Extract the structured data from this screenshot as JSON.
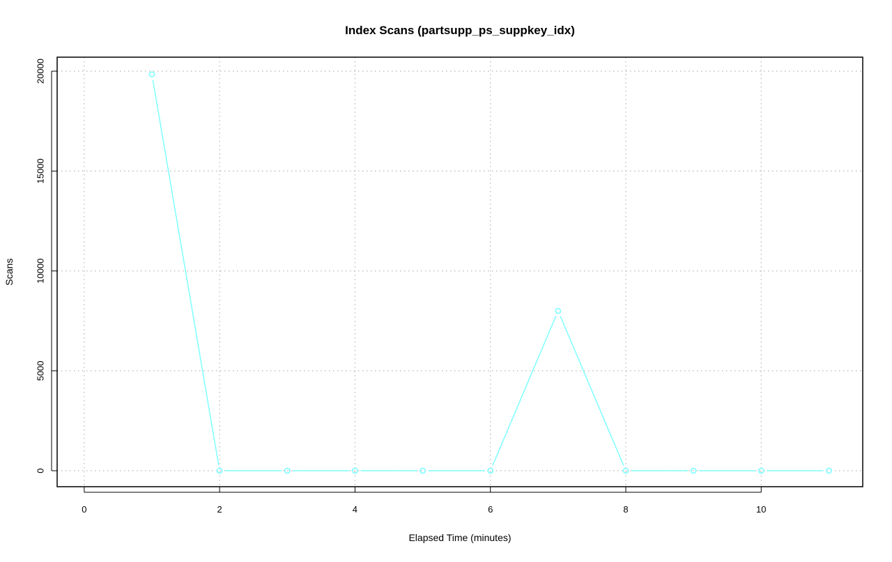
{
  "chart_data": {
    "type": "line",
    "title": "Index Scans (partsupp_ps_suppkey_idx)",
    "xlabel": "Elapsed Time (minutes)",
    "ylabel": "Scans",
    "xlim": [
      -0.4,
      11.5
    ],
    "ylim": [
      -800,
      20700
    ],
    "x_ticks": [
      0,
      2,
      4,
      6,
      8,
      10
    ],
    "y_ticks": [
      0,
      5000,
      10000,
      15000,
      20000
    ],
    "grid": true,
    "series": [
      {
        "color": "#7fffff",
        "x": [
          1,
          2,
          3,
          4,
          5,
          6,
          7,
          8,
          9,
          10,
          11
        ],
        "values": [
          19840,
          0,
          0,
          0,
          0,
          0,
          8000,
          0,
          0,
          0,
          0
        ]
      }
    ]
  }
}
